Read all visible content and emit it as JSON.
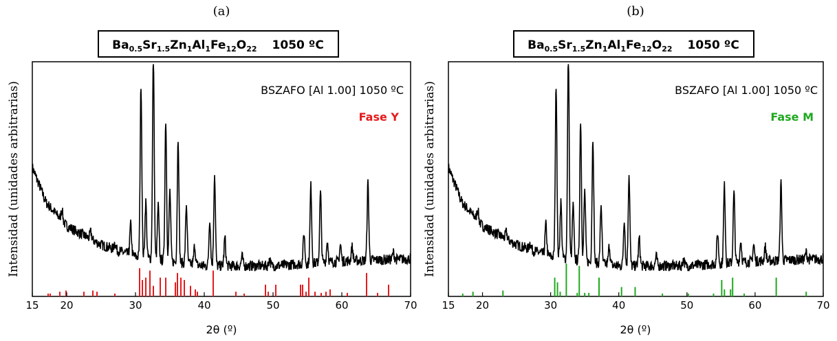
{
  "chart_data": [
    {
      "type": "line",
      "panel_label": "(a)",
      "title": {
        "el1": "Ba",
        "sub1": "0.5",
        "el2": "Sr",
        "sub2": "1.5",
        "el3": "Zn",
        "sub3": "1",
        "el4": "Al",
        "sub4": "1",
        "el5": "Fe",
        "sub5": "12",
        "el6": "O",
        "sub6": "22",
        "temp": "1050 ºC"
      },
      "sample_label": "BSZAFO [Al 1.00] 1050 ºC",
      "phase_label": "Fase Y",
      "phase_color": "#e41a1c",
      "xlabel": "2θ (º)",
      "ylabel": "Intensidad (unidades arbitrarias)",
      "xlim": [
        15,
        70
      ],
      "xticks": [
        "15",
        "20",
        "30",
        "40",
        "50",
        "60",
        "70"
      ],
      "pattern": {
        "background": [
          [
            15,
            0.55
          ],
          [
            17,
            0.4
          ],
          [
            20,
            0.3
          ],
          [
            25,
            0.22
          ],
          [
            30,
            0.17
          ],
          [
            40,
            0.13
          ],
          [
            50,
            0.13
          ],
          [
            60,
            0.15
          ],
          [
            70,
            0.16
          ]
        ],
        "peaks": [
          [
            19.3,
            0.05
          ],
          [
            23.5,
            0.03
          ],
          [
            27.0,
            0.03
          ],
          [
            29.3,
            0.13
          ],
          [
            30.8,
            0.74
          ],
          [
            31.5,
            0.24
          ],
          [
            32.6,
            0.88
          ],
          [
            33.3,
            0.23
          ],
          [
            34.4,
            0.6
          ],
          [
            35.0,
            0.3
          ],
          [
            36.2,
            0.53
          ],
          [
            37.4,
            0.25
          ],
          [
            38.6,
            0.08
          ],
          [
            40.8,
            0.2
          ],
          [
            41.5,
            0.39
          ],
          [
            43.0,
            0.12
          ],
          [
            45.5,
            0.04
          ],
          [
            49.5,
            0.03
          ],
          [
            54.5,
            0.13
          ],
          [
            55.5,
            0.33
          ],
          [
            56.9,
            0.3
          ],
          [
            57.9,
            0.09
          ],
          [
            59.8,
            0.07
          ],
          [
            61.5,
            0.06
          ],
          [
            63.8,
            0.33
          ],
          [
            67.5,
            0.03
          ]
        ]
      },
      "reference_lines": [
        [
          17.3,
          0.012
        ],
        [
          17.6,
          0.012
        ],
        [
          19.0,
          0.02
        ],
        [
          19.9,
          0.025
        ],
        [
          22.5,
          0.02
        ],
        [
          23.8,
          0.025
        ],
        [
          24.4,
          0.02
        ],
        [
          27.0,
          0.012
        ],
        [
          30.6,
          0.12
        ],
        [
          31.0,
          0.07
        ],
        [
          31.5,
          0.08
        ],
        [
          32.1,
          0.11
        ],
        [
          32.6,
          0.045
        ],
        [
          33.6,
          0.08
        ],
        [
          34.4,
          0.08
        ],
        [
          35.8,
          0.06
        ],
        [
          36.1,
          0.1
        ],
        [
          36.6,
          0.08
        ],
        [
          37.1,
          0.07
        ],
        [
          38.0,
          0.045
        ],
        [
          38.7,
          0.03
        ],
        [
          39.0,
          0.02
        ],
        [
          41.3,
          0.11
        ],
        [
          44.6,
          0.02
        ],
        [
          45.8,
          0.012
        ],
        [
          48.9,
          0.05
        ],
        [
          49.3,
          0.02
        ],
        [
          50.4,
          0.05
        ],
        [
          54.0,
          0.05
        ],
        [
          54.3,
          0.05
        ],
        [
          54.8,
          0.02
        ],
        [
          55.2,
          0.08
        ],
        [
          56.1,
          0.02
        ],
        [
          57.0,
          0.015
        ],
        [
          57.7,
          0.02
        ],
        [
          58.3,
          0.03
        ],
        [
          60.8,
          0.015
        ],
        [
          63.6,
          0.1
        ],
        [
          65.2,
          0.015
        ],
        [
          66.8,
          0.05
        ]
      ]
    },
    {
      "type": "line",
      "panel_label": "(b)",
      "title": {
        "el1": "Ba",
        "sub1": "0.5",
        "el2": "Sr",
        "sub2": "1.5",
        "el3": "Zn",
        "sub3": "1",
        "el4": "Al",
        "sub4": "1",
        "el5": "Fe",
        "sub5": "12",
        "el6": "O",
        "sub6": "22",
        "temp": "1050 ºC"
      },
      "sample_label": "BSZAFO [Al 1.00] 1050 ºC",
      "phase_label": "Fase M",
      "phase_color": "#1fa81f",
      "xlabel": "2θ (º)",
      "ylabel": "Intensidad (unidades arbitrarias)",
      "xlim": [
        15,
        70
      ],
      "xticks": [
        "15",
        "20",
        "30",
        "40",
        "50",
        "60",
        "70"
      ],
      "pattern": {
        "background": [
          [
            15,
            0.55
          ],
          [
            17,
            0.4
          ],
          [
            20,
            0.3
          ],
          [
            25,
            0.22
          ],
          [
            30,
            0.17
          ],
          [
            40,
            0.13
          ],
          [
            50,
            0.13
          ],
          [
            60,
            0.15
          ],
          [
            70,
            0.16
          ]
        ],
        "peaks": [
          [
            19.3,
            0.05
          ],
          [
            23.5,
            0.03
          ],
          [
            27.0,
            0.03
          ],
          [
            29.3,
            0.13
          ],
          [
            30.8,
            0.74
          ],
          [
            31.5,
            0.24
          ],
          [
            32.6,
            0.88
          ],
          [
            33.3,
            0.23
          ],
          [
            34.4,
            0.6
          ],
          [
            35.0,
            0.3
          ],
          [
            36.2,
            0.53
          ],
          [
            37.4,
            0.25
          ],
          [
            38.6,
            0.08
          ],
          [
            40.8,
            0.2
          ],
          [
            41.5,
            0.39
          ],
          [
            43.0,
            0.12
          ],
          [
            45.5,
            0.04
          ],
          [
            49.5,
            0.03
          ],
          [
            54.5,
            0.13
          ],
          [
            55.5,
            0.33
          ],
          [
            56.9,
            0.3
          ],
          [
            57.9,
            0.09
          ],
          [
            59.8,
            0.07
          ],
          [
            61.5,
            0.06
          ],
          [
            63.8,
            0.33
          ],
          [
            67.5,
            0.03
          ]
        ]
      },
      "reference_lines": [
        [
          17.1,
          0.012
        ],
        [
          18.6,
          0.02
        ],
        [
          23.0,
          0.025
        ],
        [
          30.6,
          0.08
        ],
        [
          31.0,
          0.06
        ],
        [
          31.4,
          0.02
        ],
        [
          32.3,
          0.14
        ],
        [
          33.9,
          0.015
        ],
        [
          34.2,
          0.13
        ],
        [
          35.0,
          0.015
        ],
        [
          35.6,
          0.015
        ],
        [
          37.1,
          0.08
        ],
        [
          40.4,
          0.04
        ],
        [
          42.4,
          0.04
        ],
        [
          46.4,
          0.012
        ],
        [
          50.2,
          0.012
        ],
        [
          53.9,
          0.012
        ],
        [
          55.1,
          0.07
        ],
        [
          55.5,
          0.03
        ],
        [
          56.4,
          0.03
        ],
        [
          56.7,
          0.08
        ],
        [
          58.4,
          0.012
        ],
        [
          63.1,
          0.08
        ],
        [
          67.5,
          0.02
        ]
      ]
    }
  ]
}
